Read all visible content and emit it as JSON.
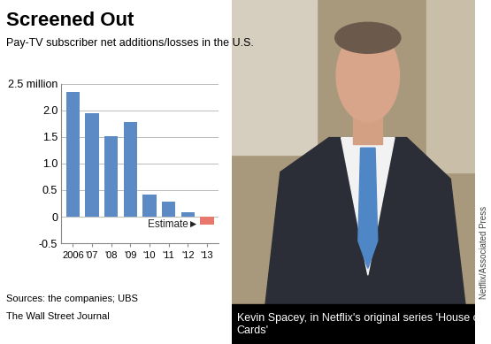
{
  "chart_data": {
    "type": "bar",
    "title": "Screened Out",
    "subtitle": "Pay-TV subscriber net additions/losses in the U.S.",
    "categories": [
      "2006",
      "'07",
      "'08",
      "'09",
      "'10",
      "'11",
      "'12",
      "'13"
    ],
    "values": [
      2.35,
      1.95,
      1.52,
      1.78,
      0.42,
      0.28,
      0.08,
      -0.15
    ],
    "colors": [
      "#5b8ac4",
      "#5b8ac4",
      "#5b8ac4",
      "#5b8ac4",
      "#5b8ac4",
      "#5b8ac4",
      "#5b8ac4",
      "#e8786b"
    ],
    "ylim": [
      -0.5,
      2.5
    ],
    "yticks": [
      -0.5,
      0,
      0.5,
      1.0,
      1.5,
      2.0,
      {
        "value": 2.5,
        "label": "2.5 million"
      }
    ],
    "grid": true,
    "annotations": [
      "Estimate►"
    ],
    "sources": "Sources: the companies; UBS",
    "credit": "The Wall Street Journal"
  },
  "photo": {
    "caption": "Kevin Spacey, in Netflix's original series 'House of Cards'",
    "credit": "Netflix/Associated Press"
  }
}
